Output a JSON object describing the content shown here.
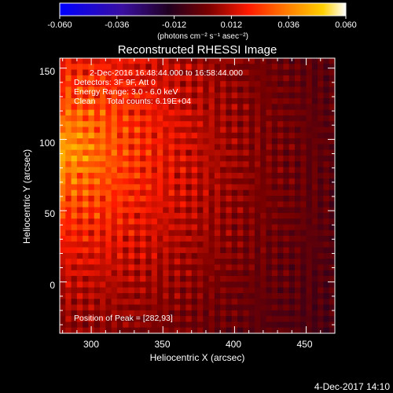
{
  "figure": {
    "title": "Reconstructed RHESSI Image",
    "footer_date": "4-Dec-2017 14:10"
  },
  "colorbar": {
    "ticks": [
      "-0.060",
      "-0.036",
      "-0.012",
      "0.012",
      "0.036",
      "0.060"
    ],
    "unit_label": "(photons cm⁻² s⁻¹ asec⁻²)",
    "range": [
      -0.06,
      0.06
    ],
    "colormap": [
      "#0000ff",
      "#3a0fa0",
      "#200020",
      "#7a0000",
      "#ff1a00",
      "#ff8000",
      "#ffd000",
      "#ffffff"
    ]
  },
  "annotations": {
    "line1": "2-Dec-2016 16:48:44.000 to 16:58:44.000",
    "line2": "Detectors: 3F 9F, Att 0",
    "line3": "Energy Range: 3.0 - 6.0 keV",
    "line4": "Clean     Total counts: 6.19E+04",
    "peak": "Position of Peak = [282,93]"
  },
  "chart_data": {
    "type": "heatmap",
    "title": "Reconstructed RHESSI Image",
    "xlabel": "Heliocentric X (arcsec)",
    "ylabel": "Heliocentric Y (arcsec)",
    "xlim": [
      278,
      470
    ],
    "ylim": [
      -36,
      157
    ],
    "x_ticks": [
      "300",
      "350",
      "400",
      "450"
    ],
    "y_ticks": [
      "0",
      "50",
      "100",
      "150"
    ],
    "peak_position": [
      282,
      93
    ],
    "peak_value": 0.06,
    "min_value": -0.02,
    "grid": false
  }
}
